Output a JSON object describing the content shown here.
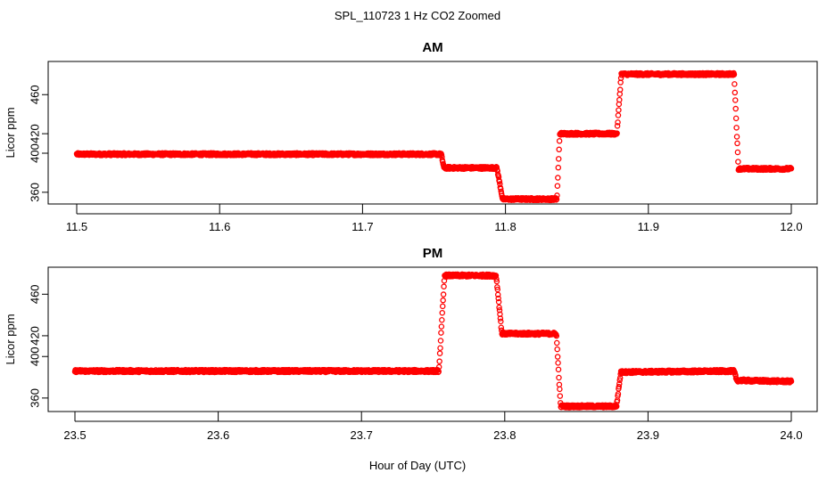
{
  "title": "SPL_110723  1 Hz CO2 Zoomed",
  "xlabel": "Hour of Day (UTC)",
  "marker_color": "#ff0000",
  "chart_data": [
    {
      "type": "scatter",
      "title": "AM",
      "ylabel": "Licor ppm",
      "xlim": [
        11.5,
        12.0
      ],
      "ylim": [
        348,
        494
      ],
      "x_ticks": [
        "11.5",
        "11.6",
        "11.7",
        "11.8",
        "11.9",
        "12.0"
      ],
      "x_tick_values": [
        11.5,
        11.6,
        11.7,
        11.8,
        11.9,
        12.0
      ],
      "y_ticks": [
        "360",
        "400",
        "420",
        "460"
      ],
      "y_tick_values": [
        360,
        400,
        420,
        460
      ],
      "profile": [
        [
          11.5,
          399
        ],
        [
          11.755,
          399
        ],
        [
          11.757,
          385
        ],
        [
          11.794,
          385
        ],
        [
          11.798,
          353
        ],
        [
          11.836,
          353
        ],
        [
          11.838,
          420
        ],
        [
          11.878,
          420
        ],
        [
          11.881,
          481
        ],
        [
          11.96,
          481
        ],
        [
          11.963,
          384
        ],
        [
          12.0,
          384
        ]
      ]
    },
    {
      "type": "scatter",
      "title": "PM",
      "ylabel": "Licor ppm",
      "xlim": [
        23.5,
        24.0
      ],
      "ylim": [
        347,
        486
      ],
      "x_ticks": [
        "23.5",
        "23.6",
        "23.7",
        "23.8",
        "23.9",
        "24.0"
      ],
      "x_tick_values": [
        23.5,
        23.6,
        23.7,
        23.8,
        23.9,
        24.0
      ],
      "y_ticks": [
        "360",
        "400",
        "420",
        "460"
      ],
      "y_tick_values": [
        360,
        400,
        420,
        460
      ],
      "profile": [
        [
          23.5,
          386
        ],
        [
          23.754,
          386
        ],
        [
          23.758,
          478
        ],
        [
          23.794,
          478
        ],
        [
          23.798,
          422
        ],
        [
          23.836,
          422
        ],
        [
          23.839,
          352
        ],
        [
          23.878,
          352
        ],
        [
          23.881,
          385
        ],
        [
          23.96,
          386
        ],
        [
          23.962,
          377
        ],
        [
          24.0,
          376
        ]
      ]
    }
  ]
}
